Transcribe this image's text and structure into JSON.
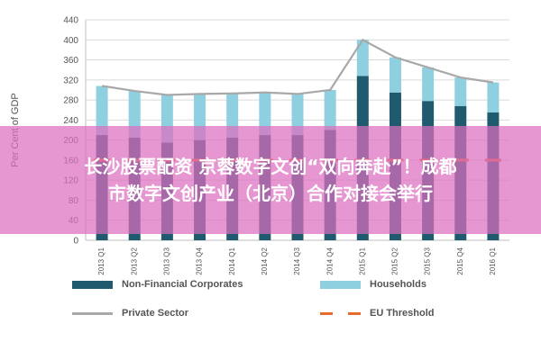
{
  "chart_data": {
    "type": "bar",
    "stacked": true,
    "ylabel": "Per Cent of GDP",
    "ylim": [
      0,
      440
    ],
    "yticks": [
      "440",
      "400",
      "360",
      "320",
      "280",
      "240",
      "200",
      "160",
      "120",
      "80",
      "40",
      "0"
    ],
    "categories": [
      "2013 Q1",
      "2013 Q2",
      "2013 Q3",
      "2013 Q4",
      "2014 Q1",
      "2014 Q2",
      "2014 Q3",
      "2014 Q4",
      "2015 Q1",
      "2015 Q2",
      "2015 Q3",
      "2015 Q4",
      "2016 Q1"
    ],
    "series": [
      {
        "name": "Non-Financial Corporates",
        "kind": "bar",
        "color": "#1f5a6e",
        "values": [
          210,
          205,
          195,
          200,
          205,
          210,
          210,
          220,
          328,
          295,
          278,
          268,
          255
        ]
      },
      {
        "name": "Households",
        "kind": "bar",
        "color": "#8fd0e0",
        "values": [
          98,
          93,
          95,
          92,
          88,
          85,
          82,
          80,
          72,
          70,
          67,
          57,
          60
        ]
      },
      {
        "name": "Private Sector",
        "kind": "line",
        "color": "#a8a8a8",
        "values": [
          308,
          298,
          290,
          292,
          293,
          295,
          292,
          300,
          400,
          365,
          345,
          325,
          315
        ]
      },
      {
        "name": "EU Threshold",
        "kind": "dashed-line",
        "color": "#e86a2c",
        "values": [
          160,
          160,
          160,
          160,
          160,
          160,
          160,
          160,
          160,
          160,
          160,
          160,
          160
        ]
      }
    ],
    "grid": true,
    "legend_position": "bottom"
  },
  "overlay": {
    "line1": "长沙股票配资 京蓉数字文创“双向奔赴”！成都",
    "line2": "市数字文创产业（北京）合作对接会举行",
    "color": "#dc6ebe"
  }
}
